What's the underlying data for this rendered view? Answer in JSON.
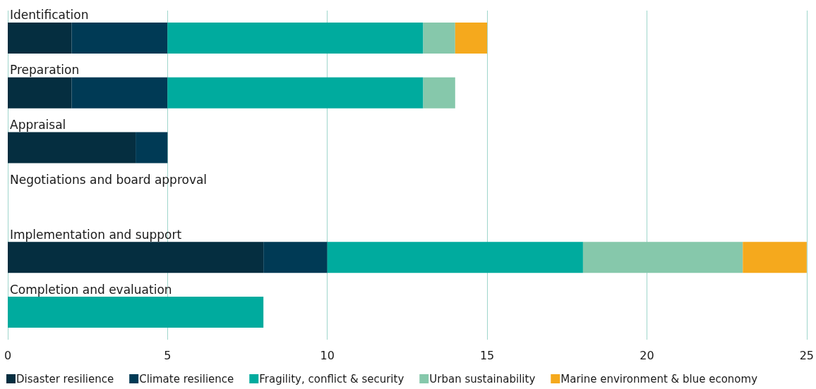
{
  "chart_data": {
    "type": "bar",
    "orientation": "horizontal",
    "stacked": true,
    "categories": [
      "Identification",
      "Preparation",
      "Appraisal",
      "Negotiations and board approval",
      "Implementation and support",
      "Completion and evaluation"
    ],
    "series": [
      {
        "name": "Disaster resilience",
        "color": "#052e40",
        "values": [
          2,
          2,
          4,
          0,
          8,
          0
        ]
      },
      {
        "name": "Climate resilience",
        "color": "#003a55",
        "values": [
          3,
          3,
          1,
          0,
          2,
          0
        ]
      },
      {
        "name": "Fragility, conflict & security",
        "color": "#00ab9e",
        "values": [
          8,
          8,
          0,
          0,
          8,
          8
        ]
      },
      {
        "name": "Urban sustainability",
        "color": "#86c8ab",
        "values": [
          1,
          1,
          0,
          0,
          5,
          0
        ]
      },
      {
        "name": "Marine environment & blue economy",
        "color": "#f5a91d",
        "values": [
          1,
          0,
          0,
          0,
          2,
          0
        ]
      }
    ],
    "xlim": [
      0,
      25
    ],
    "xticks": [
      0,
      5,
      10,
      15,
      20,
      25
    ],
    "grid": "x",
    "legend": "bottom left"
  }
}
